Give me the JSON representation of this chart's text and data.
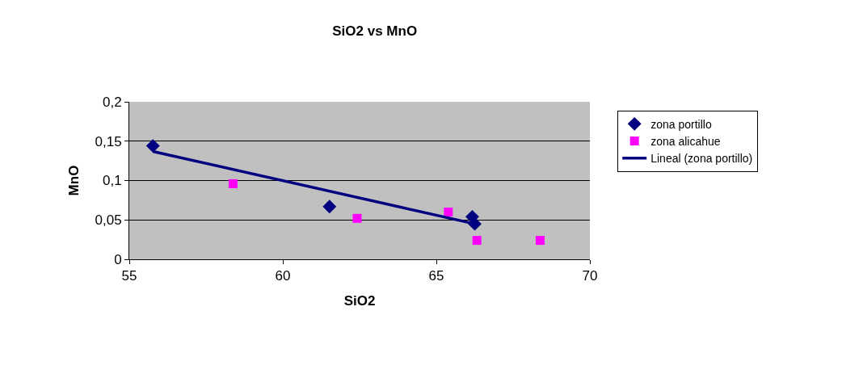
{
  "chart_data": {
    "type": "scatter",
    "title": "SiO2 vs MnO",
    "xlabel": "SiO2",
    "ylabel": "MnO",
    "xlim": [
      55,
      70
    ],
    "xticks": [
      55,
      60,
      65,
      70
    ],
    "ylim": [
      0,
      0.2
    ],
    "yticks": [
      {
        "value": 0,
        "label": "0"
      },
      {
        "value": 0.05,
        "label": "0,05"
      },
      {
        "value": 0.1,
        "label": "0,1"
      },
      {
        "value": 0.15,
        "label": "0,15"
      },
      {
        "value": 0.2,
        "label": "0,2"
      }
    ],
    "grid": "y",
    "legend": "right",
    "series": [
      {
        "name": "zona portillo",
        "color": "#000080",
        "marker": "diamond",
        "x": [
          55.77,
          61.52,
          66.17,
          66.25
        ],
        "values": [
          0.144,
          0.067,
          0.054,
          0.045
        ]
      },
      {
        "name": "zona alicahue",
        "color": "#ff00ff",
        "marker": "square",
        "x": [
          58.38,
          62.42,
          65.39,
          66.32,
          68.38
        ],
        "values": [
          0.096,
          0.052,
          0.06,
          0.024,
          0.024
        ]
      },
      {
        "name": "Lineal (zona portillo)",
        "type": "line",
        "color": "#000080",
        "marker": "none",
        "line_style": "solid",
        "x": [
          55.77,
          66.25
        ],
        "values": [
          0.137,
          0.045
        ]
      }
    ]
  }
}
